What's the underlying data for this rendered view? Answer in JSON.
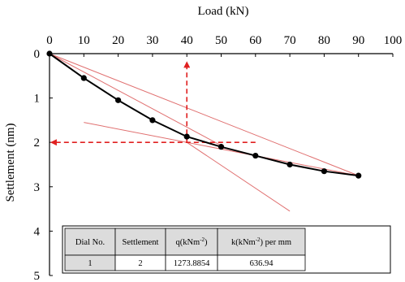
{
  "chart_data": {
    "type": "line",
    "xlabel": "Load (kN)",
    "ylabel": "Settlement (nm)",
    "xlim": [
      0,
      100
    ],
    "ylim": [
      0,
      5
    ],
    "x_ticks": [
      "0",
      "10",
      "20",
      "30",
      "40",
      "50",
      "60",
      "70",
      "80",
      "90",
      "100"
    ],
    "y_ticks": [
      "0",
      "1",
      "2",
      "3",
      "4",
      "5"
    ],
    "x_axis_position": "top",
    "y_axis_inverted": true,
    "grid": false,
    "series": [
      {
        "color": "#000000",
        "marker": "circle",
        "x": [
          0,
          10,
          20,
          30,
          40,
          50,
          60,
          70,
          80,
          90
        ],
        "y": [
          0,
          0.55,
          1.05,
          1.5,
          1.87,
          2.1,
          2.3,
          2.5,
          2.65,
          2.75
        ]
      }
    ],
    "fitted_lines": [
      {
        "color": "#e07070",
        "x": [
          0,
          90
        ],
        "y": [
          0,
          2.75
        ]
      },
      {
        "color": "#e07070",
        "x": [
          0,
          50
        ],
        "y": [
          0,
          2.07
        ]
      },
      {
        "color": "#e07070",
        "x": [
          10,
          90
        ],
        "y": [
          1.55,
          2.75
        ]
      },
      {
        "color": "#e07070",
        "x": [
          40,
          70
        ],
        "y": [
          2.0,
          3.55
        ]
      }
    ],
    "annotations": [
      {
        "type": "dashed-arrow",
        "color": "#e02020",
        "from": [
          40,
          2.0
        ],
        "to": [
          40,
          0.2
        ]
      },
      {
        "type": "dashed-arrow",
        "color": "#e02020",
        "from": [
          60,
          2.0
        ],
        "to": [
          0.6,
          2.0
        ]
      }
    ],
    "table": {
      "headers": [
        "Dial No.",
        "Settlement",
        "q(kNm",
        "-2",
        ")",
        "k(kNm",
        "-2",
        ") per mm"
      ],
      "row": [
        "1",
        "2",
        "1273.8854",
        "636.94"
      ]
    }
  }
}
